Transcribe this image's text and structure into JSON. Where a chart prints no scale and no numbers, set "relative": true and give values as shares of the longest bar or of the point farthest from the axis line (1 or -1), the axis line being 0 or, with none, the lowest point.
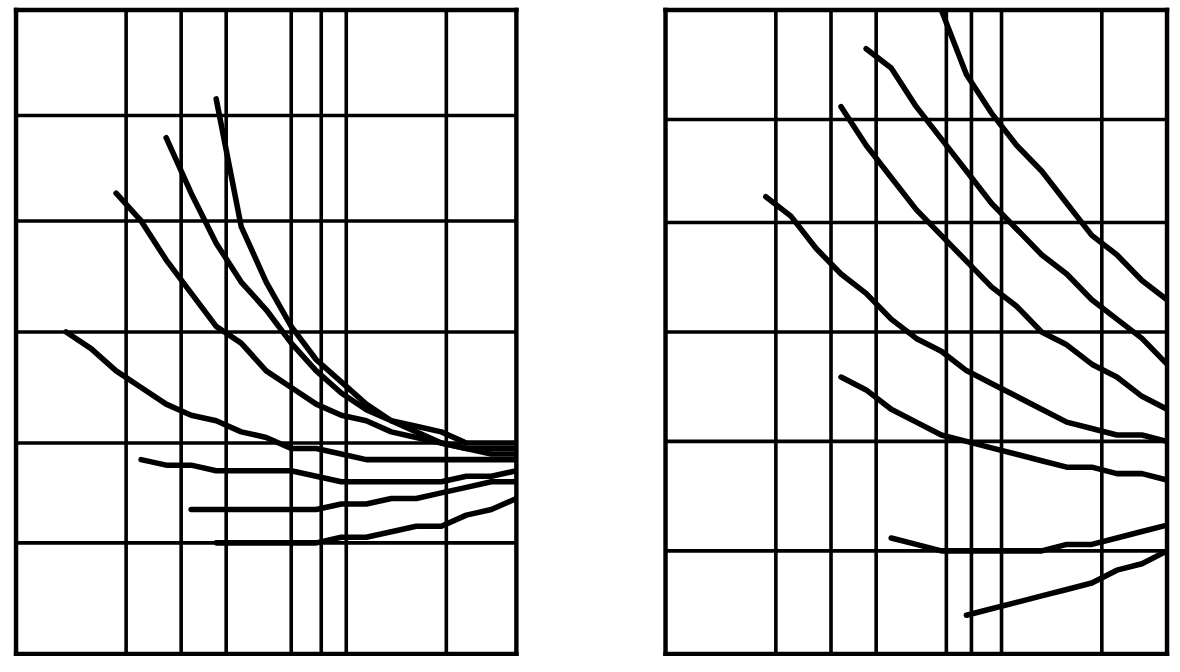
{
  "chart_data": [
    {
      "type": "line",
      "relative": true,
      "ylim": [
        0,
        1.16
      ],
      "categories": [
        null,
        null,
        null,
        null,
        null,
        null,
        null,
        null,
        null,
        null,
        null,
        null,
        null,
        null,
        null,
        null,
        null,
        null,
        null,
        null,
        null
      ],
      "ref_lines": [
        {
          "axis": "y",
          "value": 0.2,
          "color": "#000000"
        },
        {
          "axis": "y",
          "value": 0.38,
          "color": "#000000"
        },
        {
          "axis": "y",
          "value": 0.58,
          "color": "#000000"
        },
        {
          "axis": "y",
          "value": 0.78,
          "color": "#000000"
        },
        {
          "axis": "y",
          "value": 0.97,
          "color": "#000000"
        }
      ],
      "series": [
        {
          "color": "#000000",
          "values": [
            null,
            null,
            null,
            null,
            null,
            null,
            null,
            null,
            1.0,
            0.77,
            0.67,
            0.59,
            0.53,
            0.49,
            0.45,
            0.42,
            0.41,
            0.4,
            0.38,
            0.38,
            0.38
          ]
        },
        {
          "color": "#000000",
          "values": [
            null,
            null,
            null,
            null,
            null,
            null,
            0.93,
            0.83,
            0.74,
            0.67,
            0.62,
            0.56,
            0.51,
            0.47,
            0.44,
            0.42,
            0.4,
            0.38,
            0.37,
            0.37,
            0.37
          ]
        },
        {
          "color": "#000000",
          "values": [
            null,
            null,
            null,
            null,
            0.83,
            0.78,
            0.71,
            0.65,
            0.59,
            0.56,
            0.51,
            0.48,
            0.45,
            0.43,
            0.42,
            0.4,
            0.39,
            0.38,
            0.37,
            0.36,
            0.36
          ]
        },
        {
          "color": "#000000",
          "values": [
            null,
            null,
            0.58,
            0.55,
            0.51,
            0.48,
            0.45,
            0.43,
            0.42,
            0.4,
            0.39,
            0.37,
            0.37,
            0.36,
            0.35,
            0.35,
            0.35,
            0.35,
            0.35,
            0.35,
            0.35
          ]
        },
        {
          "color": "#000000",
          "values": [
            null,
            null,
            null,
            null,
            null,
            0.35,
            0.34,
            0.34,
            0.33,
            0.33,
            0.33,
            0.33,
            0.32,
            0.31,
            0.31,
            0.31,
            0.31,
            0.31,
            0.32,
            0.32,
            0.33
          ]
        },
        {
          "color": "#000000",
          "values": [
            null,
            null,
            null,
            null,
            null,
            null,
            null,
            0.26,
            0.26,
            0.26,
            0.26,
            0.26,
            0.26,
            0.27,
            0.27,
            0.28,
            0.28,
            0.29,
            0.3,
            0.31,
            0.31
          ]
        },
        {
          "color": "#000000",
          "values": [
            null,
            null,
            null,
            null,
            null,
            null,
            null,
            null,
            0.2,
            0.2,
            0.2,
            0.2,
            0.2,
            0.21,
            0.21,
            0.22,
            0.23,
            0.23,
            0.25,
            0.26,
            0.28
          ]
        }
      ]
    },
    {
      "type": "line",
      "relative": true,
      "ylim": [
        0,
        1
      ],
      "categories": [
        null,
        null,
        null,
        null,
        null,
        null,
        null,
        null,
        null,
        null,
        null,
        null,
        null,
        null,
        null,
        null,
        null,
        null,
        null,
        null,
        null
      ],
      "ref_lines": [
        {
          "axis": "y",
          "value": 0.16,
          "color": "#000000"
        },
        {
          "axis": "y",
          "value": 0.33,
          "color": "#000000"
        },
        {
          "axis": "y",
          "value": 0.5,
          "color": "#000000"
        },
        {
          "axis": "y",
          "value": 0.67,
          "color": "#000000"
        },
        {
          "axis": "y",
          "value": 0.83,
          "color": "#000000"
        }
      ],
      "series": [
        {
          "color": "#000000",
          "values": [
            null,
            null,
            null,
            null,
            null,
            null,
            null,
            null,
            null,
            null,
            null,
            1.0,
            0.9,
            0.84,
            0.79,
            0.75,
            0.7,
            0.65,
            0.62,
            0.58,
            0.55
          ]
        },
        {
          "color": "#000000",
          "values": [
            null,
            null,
            null,
            null,
            null,
            null,
            null,
            null,
            0.94,
            0.91,
            0.85,
            0.8,
            0.75,
            0.7,
            0.66,
            0.62,
            0.59,
            0.55,
            0.52,
            0.49,
            0.45
          ]
        },
        {
          "color": "#000000",
          "values": [
            null,
            null,
            null,
            null,
            null,
            null,
            null,
            0.85,
            0.79,
            0.74,
            0.69,
            0.65,
            0.61,
            0.57,
            0.54,
            0.5,
            0.48,
            0.45,
            0.43,
            0.4,
            0.38
          ]
        },
        {
          "color": "#000000",
          "values": [
            null,
            null,
            null,
            null,
            0.71,
            0.68,
            0.63,
            0.59,
            0.56,
            0.52,
            0.49,
            0.47,
            0.44,
            0.42,
            0.4,
            0.38,
            0.36,
            0.35,
            0.34,
            0.34,
            0.33
          ]
        },
        {
          "color": "#000000",
          "values": [
            null,
            null,
            null,
            null,
            null,
            null,
            null,
            0.43,
            0.41,
            0.38,
            0.36,
            0.34,
            0.33,
            0.32,
            0.31,
            0.3,
            0.29,
            0.29,
            0.28,
            0.28,
            0.27
          ]
        },
        {
          "color": "#000000",
          "values": [
            null,
            null,
            null,
            null,
            null,
            null,
            null,
            null,
            null,
            0.18,
            0.17,
            0.16,
            0.16,
            0.16,
            0.16,
            0.16,
            0.17,
            0.17,
            0.18,
            0.19,
            0.2
          ]
        },
        {
          "color": "#000000",
          "values": [
            null,
            null,
            null,
            null,
            null,
            null,
            null,
            null,
            null,
            null,
            null,
            null,
            0.06,
            0.07,
            0.08,
            0.09,
            0.1,
            0.11,
            0.13,
            0.14,
            0.16
          ]
        }
      ]
    }
  ]
}
